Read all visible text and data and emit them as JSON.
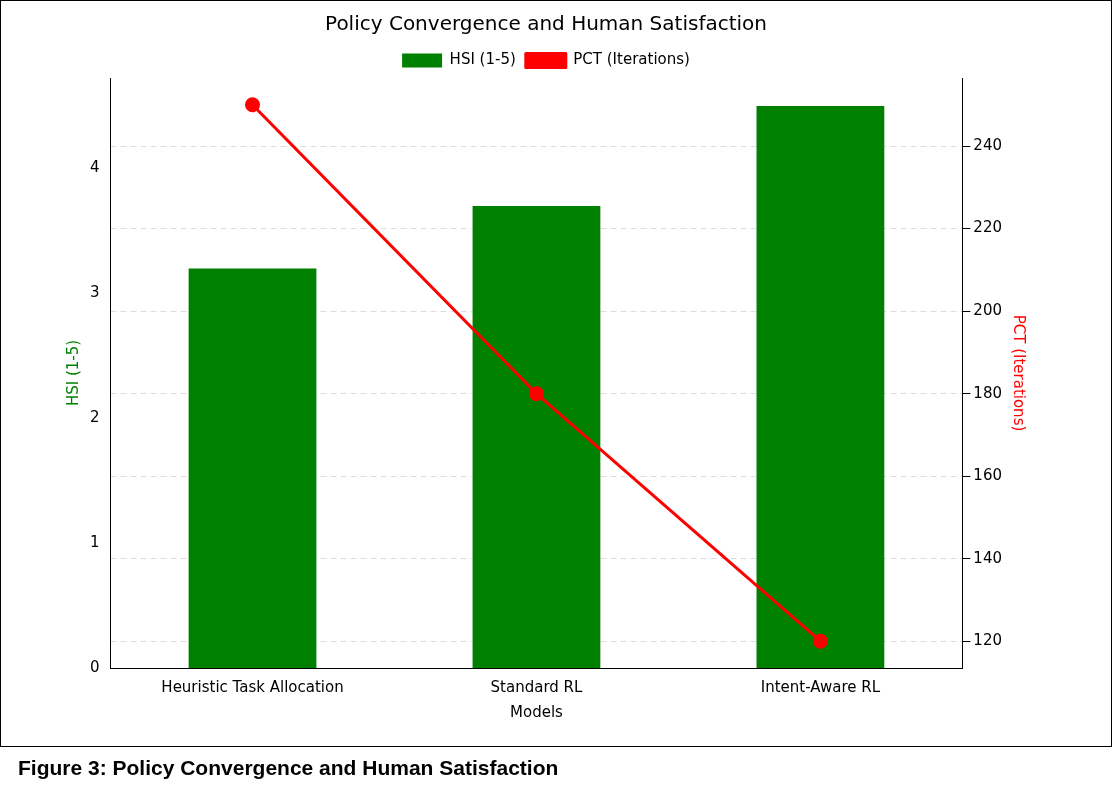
{
  "chart_data": {
    "type": "bar",
    "title": "Policy Convergence and Human Satisfaction",
    "xlabel": "Models",
    "ylabel": "HSI (1-5)",
    "y2label": "PCT (Iterations)",
    "categories": [
      "Heuristic Task Allocation",
      "Standard RL",
      "Intent-Aware RL"
    ],
    "series": [
      {
        "name": "HSI (1-5)",
        "color": "#008000",
        "values": [
          3.2,
          3.7,
          4.5
        ]
      },
      {
        "name": "PCT (Iterations)",
        "type": "line",
        "axis": "y2",
        "color": "#ff0000",
        "values": [
          250,
          180,
          120
        ]
      }
    ],
    "ylim": [
      0,
      4.725
    ],
    "yticks": [
      0,
      1,
      2,
      3,
      4
    ],
    "y2lim": [
      113.5,
      256.5
    ],
    "y2ticks": [
      120,
      140,
      160,
      180,
      200,
      220,
      240
    ],
    "grid": "y2",
    "legend": "top",
    "marker": "circle",
    "line_style": "solid",
    "annotations": [
      "Figure 3: Policy Convergence and Human Satisfaction"
    ]
  }
}
